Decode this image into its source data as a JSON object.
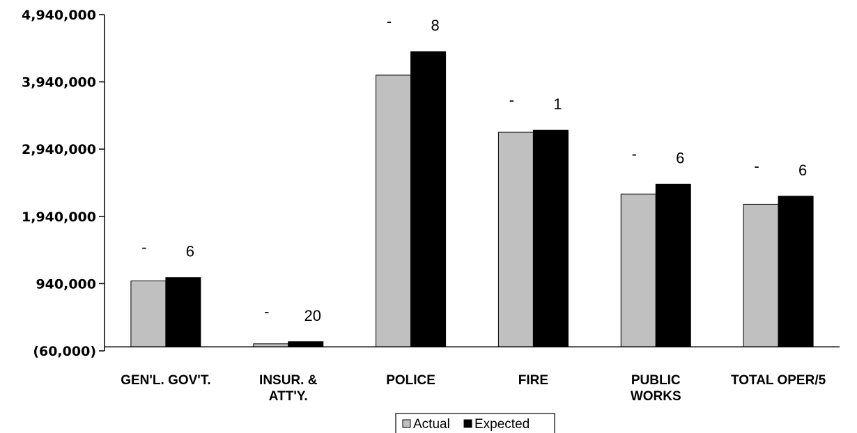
{
  "chart_data": {
    "type": "bar",
    "categories": [
      "GEN'L. GOV'T.",
      "INSUR. & ATT'Y.",
      "POLICE",
      "FIRE",
      "PUBLIC WORKS",
      "TOTAL OPER/5"
    ],
    "category_lines": [
      [
        "GEN'L. GOV'T."
      ],
      [
        "INSUR. &",
        "ATT'Y."
      ],
      [
        "POLICE"
      ],
      [
        "FIRE"
      ],
      [
        "PUBLIC",
        "WORKS"
      ],
      [
        "TOTAL OPER/5"
      ]
    ],
    "series": [
      {
        "name": "Actual",
        "color": "#c0c0c0",
        "values": [
          980000,
          45000,
          4040000,
          3190000,
          2270000,
          2120000
        ]
      },
      {
        "name": "Expected",
        "color": "#000000",
        "values": [
          1030000,
          77000,
          4390000,
          3220000,
          2420000,
          2240000
        ]
      }
    ],
    "actual_labels": [
      "-",
      "-",
      "-",
      "-",
      "-",
      "-"
    ],
    "expected_labels": [
      "6",
      "20",
      "8",
      "1",
      "6",
      "6"
    ],
    "yticks": [
      -60000,
      940000,
      1940000,
      2940000,
      3940000,
      4940000
    ],
    "ytick_labels": [
      "(60,000)",
      "940,000",
      "1,940,000",
      "2,940,000",
      "3,940,000",
      "4,940,000"
    ],
    "ylim": [
      -60000,
      4940000
    ],
    "title": "",
    "xlabel": "",
    "ylabel": "",
    "legend_position": "bottom",
    "grid": false
  }
}
